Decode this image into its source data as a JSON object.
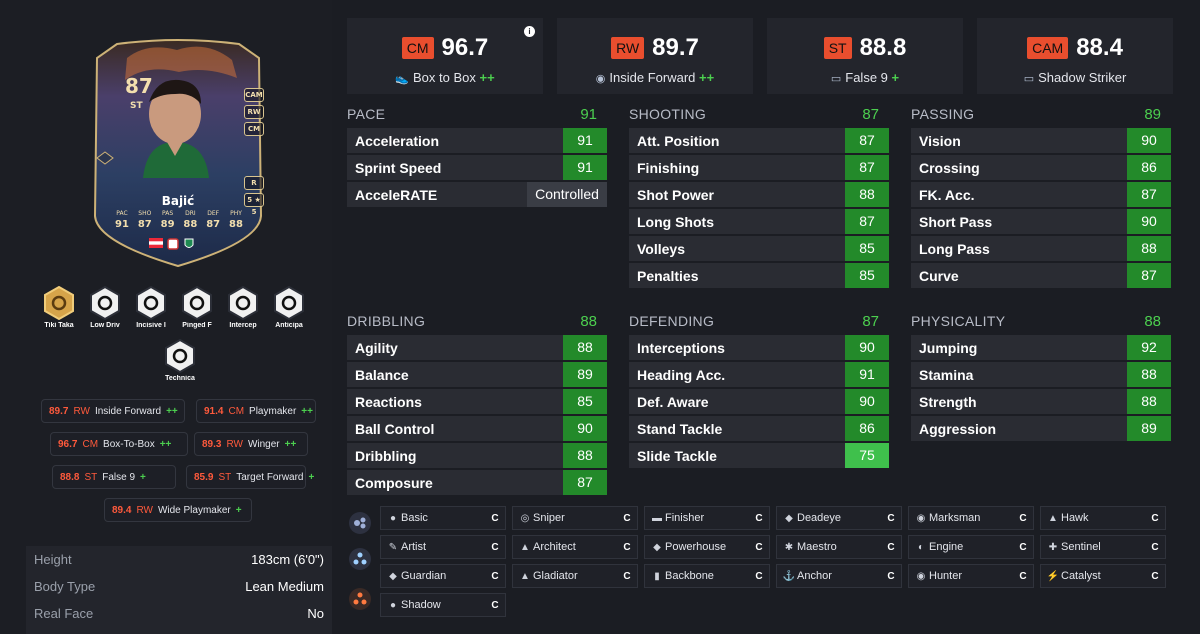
{
  "card": {
    "rating": "87",
    "position": "ST",
    "name": "Bajić",
    "alt_positions": [
      "CAM",
      "RW",
      "CM"
    ],
    "foot": "R",
    "skills": "5 ★ 5",
    "stats": [
      {
        "label": "PAC",
        "value": "91"
      },
      {
        "label": "SHO",
        "value": "87"
      },
      {
        "label": "PAS",
        "value": "89"
      },
      {
        "label": "DRI",
        "value": "88"
      },
      {
        "label": "DEF",
        "value": "87"
      },
      {
        "label": "PHY",
        "value": "88"
      }
    ]
  },
  "playstyles_plus": [
    {
      "icon": "tiki-taka-icon",
      "label": "Tiki Taka"
    },
    {
      "icon": "low-driven-shot-icon",
      "label": "Low Driv"
    },
    {
      "icon": "incisive-pass-icon",
      "label": "Incisive I"
    },
    {
      "icon": "pinged-pass-icon",
      "label": "Pinged F"
    },
    {
      "icon": "intercept-icon",
      "label": "Intercep"
    },
    {
      "icon": "anticipate-icon",
      "label": "Anticipa"
    },
    {
      "icon": "technical-icon",
      "label": "Technica"
    }
  ],
  "roles": [
    {
      "value": "89.7",
      "pos": "RW",
      "name": "Inside Forward",
      "plus": "++"
    },
    {
      "value": "91.4",
      "pos": "CM",
      "name": "Playmaker",
      "plus": "++"
    },
    {
      "value": "96.7",
      "pos": "CM",
      "name": "Box-To-Box",
      "plus": "++"
    },
    {
      "value": "89.3",
      "pos": "RW",
      "name": "Winger",
      "plus": "++"
    },
    {
      "value": "88.8",
      "pos": "ST",
      "name": "False 9",
      "plus": "+"
    },
    {
      "value": "85.9",
      "pos": "ST",
      "name": "Target Forward",
      "plus": "+"
    },
    {
      "value": "89.4",
      "pos": "RW",
      "name": "Wide Playmaker",
      "plus": "+"
    }
  ],
  "bio": [
    {
      "key": "Height",
      "value": "183cm (6'0\")"
    },
    {
      "key": "Body Type",
      "value": "Lean Medium"
    },
    {
      "key": "Real Face",
      "value": "No"
    }
  ],
  "summary": [
    {
      "pos": "CM",
      "value": "96.7",
      "role": "Box to Box",
      "plus": "++",
      "icon": "box-to-box-icon"
    },
    {
      "pos": "RW",
      "value": "89.7",
      "role": "Inside Forward",
      "plus": "++",
      "icon": "inside-forward-icon"
    },
    {
      "pos": "ST",
      "value": "88.8",
      "role": "False 9",
      "plus": "+",
      "icon": "false-9-icon"
    },
    {
      "pos": "CAM",
      "value": "88.4",
      "role": "Shadow Striker",
      "plus": "",
      "icon": "shadow-striker-icon"
    }
  ],
  "groups": {
    "pace": {
      "name": "PACE",
      "value": "91",
      "stats": [
        {
          "name": "Acceleration",
          "value": "91"
        },
        {
          "name": "Sprint Speed",
          "value": "91"
        },
        {
          "name": "AcceleRATE",
          "value": "Controlled"
        }
      ]
    },
    "shooting": {
      "name": "SHOOTING",
      "value": "87",
      "stats": [
        {
          "name": "Att. Position",
          "value": "87"
        },
        {
          "name": "Finishing",
          "value": "87"
        },
        {
          "name": "Shot Power",
          "value": "88"
        },
        {
          "name": "Long Shots",
          "value": "87"
        },
        {
          "name": "Volleys",
          "value": "85"
        },
        {
          "name": "Penalties",
          "value": "85"
        }
      ]
    },
    "passing": {
      "name": "PASSING",
      "value": "89",
      "stats": [
        {
          "name": "Vision",
          "value": "90"
        },
        {
          "name": "Crossing",
          "value": "86"
        },
        {
          "name": "FK. Acc.",
          "value": "87"
        },
        {
          "name": "Short Pass",
          "value": "90"
        },
        {
          "name": "Long Pass",
          "value": "88"
        },
        {
          "name": "Curve",
          "value": "87"
        }
      ]
    },
    "dribbling": {
      "name": "DRIBBLING",
      "value": "88",
      "stats": [
        {
          "name": "Agility",
          "value": "88"
        },
        {
          "name": "Balance",
          "value": "89"
        },
        {
          "name": "Reactions",
          "value": "85"
        },
        {
          "name": "Ball Control",
          "value": "90"
        },
        {
          "name": "Dribbling",
          "value": "88"
        },
        {
          "name": "Composure",
          "value": "87"
        }
      ]
    },
    "defending": {
      "name": "DEFENDING",
      "value": "87",
      "stats": [
        {
          "name": "Interceptions",
          "value": "90"
        },
        {
          "name": "Heading Acc.",
          "value": "91"
        },
        {
          "name": "Def. Aware",
          "value": "90"
        },
        {
          "name": "Stand Tackle",
          "value": "86"
        },
        {
          "name": "Slide Tackle",
          "value": "75"
        }
      ]
    },
    "physicality": {
      "name": "PHYSICALITY",
      "value": "88",
      "stats": [
        {
          "name": "Jumping",
          "value": "92"
        },
        {
          "name": "Stamina",
          "value": "88"
        },
        {
          "name": "Strength",
          "value": "88"
        },
        {
          "name": "Aggression",
          "value": "89"
        }
      ]
    }
  },
  "chem_styles": [
    [
      {
        "name": "Basic",
        "grade": "C",
        "icon": "basic-icon"
      },
      {
        "name": "Sniper",
        "grade": "C",
        "icon": "sniper-icon"
      },
      {
        "name": "Finisher",
        "grade": "C",
        "icon": "finisher-icon"
      },
      {
        "name": "Deadeye",
        "grade": "C",
        "icon": "deadeye-icon"
      },
      {
        "name": "Marksman",
        "grade": "C",
        "icon": "marksman-icon"
      },
      {
        "name": "Hawk",
        "grade": "C",
        "icon": "hawk-icon"
      }
    ],
    [
      {
        "name": "Artist",
        "grade": "C",
        "icon": "artist-icon"
      },
      {
        "name": "Architect",
        "grade": "C",
        "icon": "architect-icon"
      },
      {
        "name": "Powerhouse",
        "grade": "C",
        "icon": "powerhouse-icon"
      },
      {
        "name": "Maestro",
        "grade": "C",
        "icon": "maestro-icon"
      },
      {
        "name": "Engine",
        "grade": "C",
        "icon": "engine-icon"
      },
      {
        "name": "Sentinel",
        "grade": "C",
        "icon": "sentinel-icon"
      }
    ],
    [
      {
        "name": "Guardian",
        "grade": "C",
        "icon": "guardian-icon"
      },
      {
        "name": "Gladiator",
        "grade": "C",
        "icon": "gladiator-icon"
      },
      {
        "name": "Backbone",
        "grade": "C",
        "icon": "backbone-icon"
      },
      {
        "name": "Anchor",
        "grade": "C",
        "icon": "anchor-icon"
      },
      {
        "name": "Hunter",
        "grade": "C",
        "icon": "hunter-icon"
      },
      {
        "name": "Catalyst",
        "grade": "C",
        "icon": "catalyst-icon"
      }
    ],
    [
      {
        "name": "Shadow",
        "grade": "C",
        "icon": "shadow-icon"
      }
    ]
  ],
  "colors": {
    "accent_red": "#e94e2e",
    "stat_green": "#238a2a",
    "stat_green_light": "#3fc04c",
    "plus_green": "#4ccf4f"
  }
}
